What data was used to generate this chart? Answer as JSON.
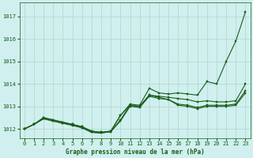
{
  "title": "Graphe pression niveau de la mer (hPa)",
  "bg_color": "#cff0ee",
  "grid_color": "#b8d8d0",
  "line_color": "#1a5c1a",
  "xlim": [
    -0.5,
    23.5
  ],
  "ylim": [
    1011.6,
    1017.6
  ],
  "yticks": [
    1012,
    1013,
    1014,
    1015,
    1016,
    1017
  ],
  "xticks": [
    0,
    1,
    2,
    3,
    4,
    5,
    6,
    7,
    8,
    9,
    10,
    11,
    12,
    13,
    14,
    15,
    16,
    17,
    18,
    19,
    20,
    21,
    22,
    23
  ],
  "series": [
    [
      1012.0,
      1012.2,
      1012.5,
      1012.4,
      1012.3,
      1012.2,
      1012.1,
      1011.9,
      1011.85,
      1011.9,
      1012.6,
      1013.1,
      1013.05,
      1013.8,
      1013.6,
      1013.55,
      1013.6,
      1013.55,
      1013.5,
      1014.1,
      1014.0,
      1015.0,
      1015.9,
      1017.2
    ],
    [
      1012.0,
      1012.2,
      1012.5,
      1012.4,
      1012.3,
      1012.2,
      1012.1,
      1011.9,
      1011.85,
      1011.9,
      1012.6,
      1013.05,
      1013.0,
      1013.5,
      1013.45,
      1013.4,
      1013.35,
      1013.3,
      1013.2,
      1013.25,
      1013.2,
      1013.2,
      1013.25,
      1014.0
    ],
    [
      1012.0,
      1012.2,
      1012.45,
      1012.35,
      1012.25,
      1012.2,
      1012.05,
      1011.85,
      1011.82,
      1011.88,
      1012.4,
      1013.05,
      1013.0,
      1013.5,
      1013.4,
      1013.3,
      1013.1,
      1013.05,
      1012.95,
      1013.05,
      1013.05,
      1013.05,
      1013.1,
      1013.7
    ],
    [
      1012.0,
      1012.2,
      1012.45,
      1012.35,
      1012.25,
      1012.15,
      1012.05,
      1011.85,
      1011.82,
      1011.88,
      1012.35,
      1013.0,
      1012.95,
      1013.45,
      1013.35,
      1013.3,
      1013.05,
      1013.0,
      1012.9,
      1013.0,
      1013.0,
      1013.0,
      1013.05,
      1013.6
    ]
  ]
}
